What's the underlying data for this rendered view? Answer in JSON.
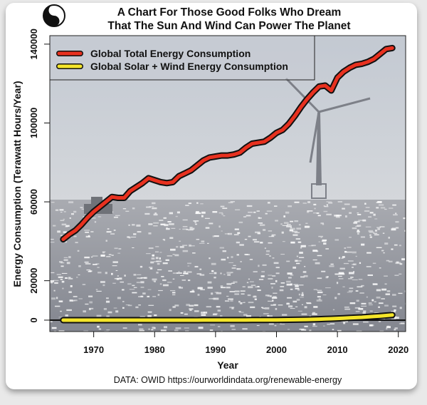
{
  "chart_data": {
    "type": "line",
    "title": "A Chart For Those Good Folks Who Dream",
    "subtitle": "That The Sun And Wind Can Power The Planet",
    "xlabel": "Year",
    "ylabel": "Energy Consumption (Terawatt Hours/Year)",
    "caption": "DATA: OWID https://ourworldindata.org/renewable-energy",
    "xlim": [
      1962.8,
      2021.2
    ],
    "ylim": [
      -5800,
      144300
    ],
    "xticks": [
      "1970",
      "1980",
      "1990",
      "2000",
      "2010",
      "2020"
    ],
    "yticks": [
      "0",
      "20000",
      "60000",
      "100000",
      "140000"
    ],
    "grid": false,
    "legend_position": "top-left",
    "x": [
      1965,
      1966,
      1967,
      1968,
      1969,
      1970,
      1971,
      1972,
      1973,
      1974,
      1975,
      1976,
      1977,
      1978,
      1979,
      1980,
      1981,
      1982,
      1983,
      1984,
      1985,
      1986,
      1987,
      1988,
      1989,
      1990,
      1991,
      1992,
      1993,
      1994,
      1995,
      1996,
      1997,
      1998,
      1999,
      2000,
      2001,
      2002,
      2003,
      2004,
      2005,
      2006,
      2007,
      2008,
      2009,
      2010,
      2011,
      2012,
      2013,
      2014,
      2015,
      2016,
      2017,
      2018,
      2019
    ],
    "series": [
      {
        "name": "Global Total Energy Consumption",
        "color": "#e8311f",
        "values": [
          41000,
          43500,
          45500,
          48500,
          52000,
          55000,
          57500,
          60000,
          62500,
          62000,
          62000,
          65500,
          67500,
          69500,
          72000,
          71000,
          70000,
          69500,
          70000,
          73000,
          74500,
          76000,
          78500,
          81000,
          82500,
          83000,
          83500,
          83500,
          84000,
          85000,
          87500,
          89500,
          90000,
          90500,
          92500,
          95000,
          96500,
          99500,
          103500,
          108000,
          112000,
          115500,
          118500,
          119000,
          116500,
          123000,
          126000,
          128000,
          129500,
          130000,
          131000,
          132500,
          135000,
          137500,
          138000
        ]
      },
      {
        "name": "Global Solar + Wind Energy Consumption",
        "color": "#f4e52a",
        "values": [
          0,
          0,
          0,
          0,
          0,
          0,
          0,
          0,
          0,
          0,
          0,
          0,
          0,
          0,
          0,
          0,
          0,
          0,
          0,
          0,
          0,
          0,
          0,
          10,
          10,
          20,
          20,
          30,
          30,
          40,
          40,
          50,
          60,
          70,
          90,
          110,
          140,
          170,
          210,
          260,
          320,
          400,
          480,
          600,
          700,
          850,
          1000,
          1150,
          1300,
          1450,
          1650,
          1850,
          2100,
          2350,
          2600
        ]
      }
    ]
  },
  "logo": "yin-yang-icon"
}
